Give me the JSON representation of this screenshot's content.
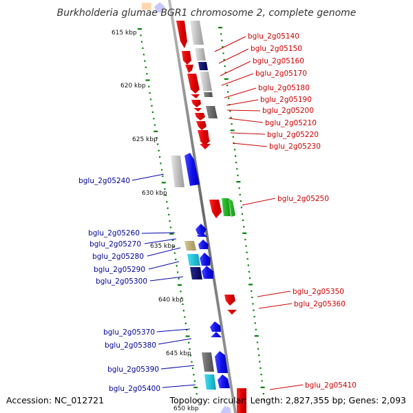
{
  "title": "Burkholderia glumae BGR1 chromosome 2, complete genome",
  "footer": {
    "accession": "Accession: NC_012721",
    "summary": "Topology: circular; Length: 2,827,355 bp; Genes: 2,093"
  },
  "colors": {
    "forward_label": "#cc0000",
    "reverse_label": "#000099",
    "backbone": "#808080",
    "tick": "#008000"
  },
  "scale_marks": [
    {
      "kbp": 615,
      "label": "615 kbp"
    },
    {
      "kbp": 620,
      "label": "620 kbp"
    },
    {
      "kbp": 625,
      "label": "625 kbp"
    },
    {
      "kbp": 630,
      "label": "630 kbp"
    },
    {
      "kbp": 635,
      "label": "635 kbp"
    },
    {
      "kbp": 640,
      "label": "640 kbp"
    },
    {
      "kbp": 645,
      "label": "645 kbp"
    },
    {
      "kbp": 650,
      "label": "650 kbp"
    }
  ],
  "genes": {
    "forward": [
      "bglu_2g05140",
      "bglu_2g05150",
      "bglu_2g05160",
      "bglu_2g05170",
      "bglu_2g05180",
      "bglu_2g05190",
      "bglu_2g05200",
      "bglu_2g05210",
      "bglu_2g05220",
      "bglu_2g05230",
      "bglu_2g05250",
      "bglu_2g05350",
      "bglu_2g05360",
      "bglu_2g05410"
    ],
    "reverse": [
      "bglu_2g05240",
      "bglu_2g05260",
      "bglu_2g05270",
      "bglu_2g05280",
      "bglu_2g05290",
      "bglu_2g05300",
      "bglu_2g05370",
      "bglu_2g05380",
      "bglu_2g05390",
      "bglu_2g05400"
    ]
  }
}
